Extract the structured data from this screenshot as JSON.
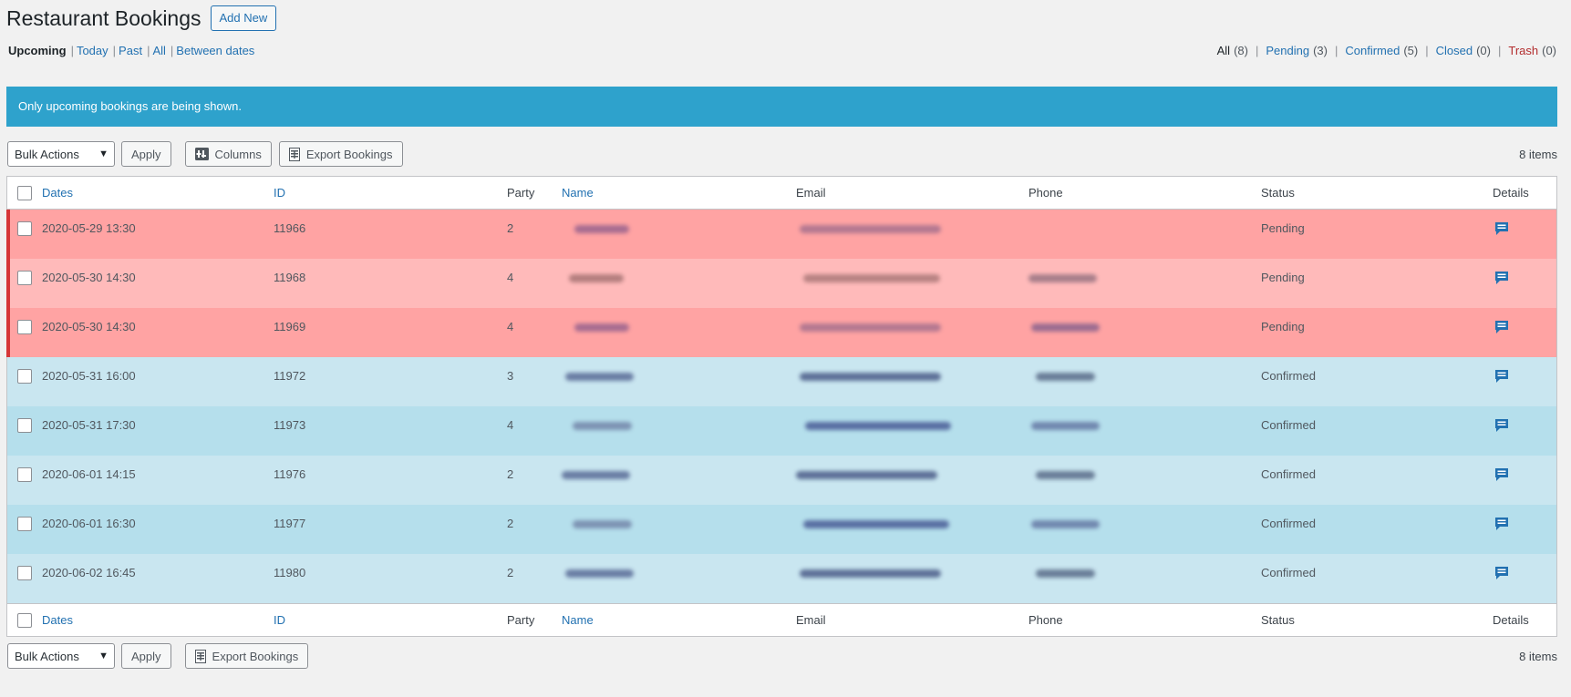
{
  "header": {
    "title": "Restaurant Bookings",
    "add_new_label": "Add New"
  },
  "date_filters": [
    {
      "label": "Upcoming",
      "current": true
    },
    {
      "label": "Today",
      "current": false
    },
    {
      "label": "Past",
      "current": false
    },
    {
      "label": "All",
      "current": false
    },
    {
      "label": "Between dates",
      "current": false
    }
  ],
  "status_filters": [
    {
      "label": "All",
      "count": "(8)",
      "current": true
    },
    {
      "label": "Pending",
      "count": "(3)"
    },
    {
      "label": "Confirmed",
      "count": "(5)"
    },
    {
      "label": "Closed",
      "count": "(0)"
    },
    {
      "label": "Trash",
      "count": "(0)"
    }
  ],
  "notice": "Only upcoming bookings are being shown.",
  "tablenav": {
    "bulk_actions": "Bulk Actions",
    "apply": "Apply",
    "columns": "Columns",
    "export": "Export Bookings",
    "items": "8 items"
  },
  "columns": {
    "dates": "Dates",
    "id": "ID",
    "party": "Party",
    "name": "Name",
    "email": "Email",
    "phone": "Phone",
    "status": "Status",
    "details": "Details"
  },
  "rows": [
    {
      "date": "2020-05-29 13:30",
      "id": "11966",
      "party": "2",
      "status": "Pending"
    },
    {
      "date": "2020-05-30 14:30",
      "id": "11968",
      "party": "4",
      "status": "Pending"
    },
    {
      "date": "2020-05-30 14:30",
      "id": "11969",
      "party": "4",
      "status": "Pending"
    },
    {
      "date": "2020-05-31 16:00",
      "id": "11972",
      "party": "3",
      "status": "Confirmed"
    },
    {
      "date": "2020-05-31 17:30",
      "id": "11973",
      "party": "4",
      "status": "Confirmed"
    },
    {
      "date": "2020-06-01 14:15",
      "id": "11976",
      "party": "2",
      "status": "Confirmed"
    },
    {
      "date": "2020-06-01 16:30",
      "id": "11977",
      "party": "2",
      "status": "Confirmed"
    },
    {
      "date": "2020-06-02 16:45",
      "id": "11980",
      "party": "2",
      "status": "Confirmed"
    }
  ],
  "colors": {
    "accent": "#2271b1",
    "notice_bg": "#2ea2cc",
    "pending_dark": "#ffa3a3",
    "pending_light": "#ffbaba",
    "confirmed_light": "#c9e6f0",
    "confirmed_dark": "#b5dfec",
    "pending_border": "#d63638"
  },
  "icons": {
    "details": "comment-bubble-icon",
    "columns": "columns-icon",
    "export": "spreadsheet-icon",
    "select": "chevron-down-icon"
  }
}
